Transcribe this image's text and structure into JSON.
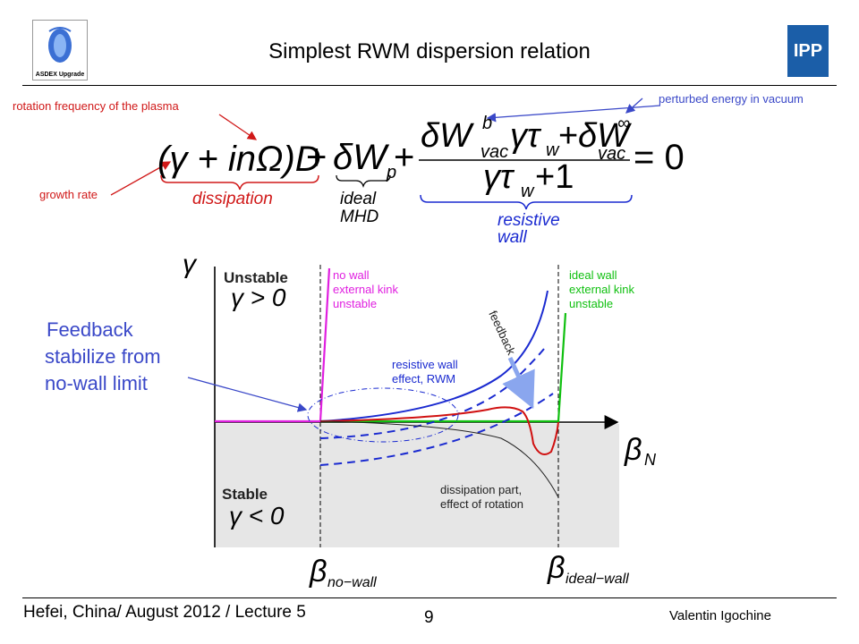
{
  "header": {
    "title": "Simplest RWM dispersion relation",
    "left_logo_caption": "ASDEX Upgrade",
    "right_logo_text": "IPP"
  },
  "annotations": {
    "rotation_frequency": "rotation frequency of the plasma",
    "perturbed_energy": "perturbed energy in vacuum",
    "growth_rate": "growth rate"
  },
  "equation": {
    "term1": "(γ + inΩ)D",
    "dissipation": "dissipation",
    "term2": "δW",
    "term2_sub": "p",
    "ideal": "ideal",
    "mhd": "MHD",
    "numerator_a": "δW",
    "numerator_a_sup": "b",
    "numerator_a_sub": "vac",
    "numerator_a_tail": "γτ",
    "numerator_a_tail_sub": "w",
    "numerator_b": "δW",
    "numerator_b_sup": "∞",
    "numerator_b_sub": "vac",
    "denominator": "γτ",
    "denominator_sub": "w",
    "denominator_tail": "+1",
    "equals": "= 0",
    "resistive": "resistive",
    "wall": "wall",
    "plus": "+"
  },
  "diagram": {
    "y_axis_label": "γ",
    "x_axis_label": "β",
    "x_axis_sub": "N",
    "unstable": "Unstable",
    "unstable_cond": "γ > 0",
    "stable": "Stable",
    "stable_cond": "γ < 0",
    "no_wall_1": "no wall",
    "no_wall_2": "external kink",
    "no_wall_3": "unstable",
    "ideal_wall_1": "ideal wall",
    "ideal_wall_2": "external kink",
    "ideal_wall_3": "unstable",
    "rwm_1": "resistive wall",
    "rwm_2": "effect, RWM",
    "feedback": "feedback",
    "diss_1": "dissipation part,",
    "diss_2": "effect of rotation",
    "beta": "β",
    "beta_no_wall_sub": "no−wall",
    "beta_ideal_wall_sub": "ideal−wall",
    "feedback_note_1": "Feedback",
    "feedback_note_2": "stabilize from",
    "feedback_note_3": "no-wall limit",
    "colors": {
      "magenta": "#e020e0",
      "blue": "#1a2ad0",
      "green": "#10c010",
      "red": "#d01010",
      "gray_bg": "#e6e6e6",
      "feedback_arrow": "#8aa6ee"
    }
  },
  "footer": {
    "left": "Hefei, China/ August 2012 / Lecture 5",
    "page": "9",
    "right": "Valentin Igochine"
  }
}
